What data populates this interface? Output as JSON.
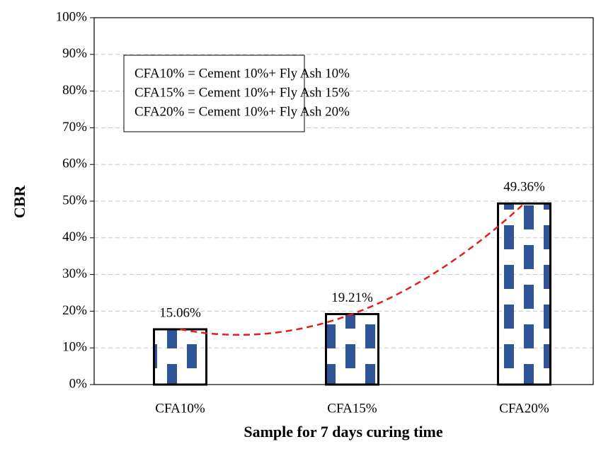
{
  "chart_data": {
    "type": "bar",
    "x_label": "Sample for 7 days curing time",
    "y_label": "CBR",
    "categories": [
      "CFA10%",
      "CFA15%",
      "CFA20%"
    ],
    "values": [
      15.06,
      19.21,
      49.36
    ],
    "value_labels": [
      "15.06%",
      "19.21%",
      "49.36%"
    ],
    "color": "#2f5597",
    "trendline": {
      "type": "polynomial",
      "order": 2,
      "color": "#e02020"
    },
    "annotations": [
      "CFA10% = Cement 10%+ Fly Ash 10%",
      "CFA15% = Cement 10%+ Fly Ash 15%",
      "CFA20% = Cement 10%+ Fly Ash 20%"
    ],
    "ylim": [
      0,
      100
    ],
    "yticks": [
      {
        "value": 0,
        "label": "0%"
      },
      {
        "value": 10,
        "label": "10%"
      },
      {
        "value": 20,
        "label": "20%"
      },
      {
        "value": 30,
        "label": "30%"
      },
      {
        "value": 40,
        "label": "40%"
      },
      {
        "value": 50,
        "label": "50%"
      },
      {
        "value": 60,
        "label": "60%"
      },
      {
        "value": 70,
        "label": "70%"
      },
      {
        "value": 80,
        "label": "80%"
      },
      {
        "value": 90,
        "label": "90%"
      },
      {
        "value": 100,
        "label": "100%"
      }
    ],
    "grid": true
  }
}
